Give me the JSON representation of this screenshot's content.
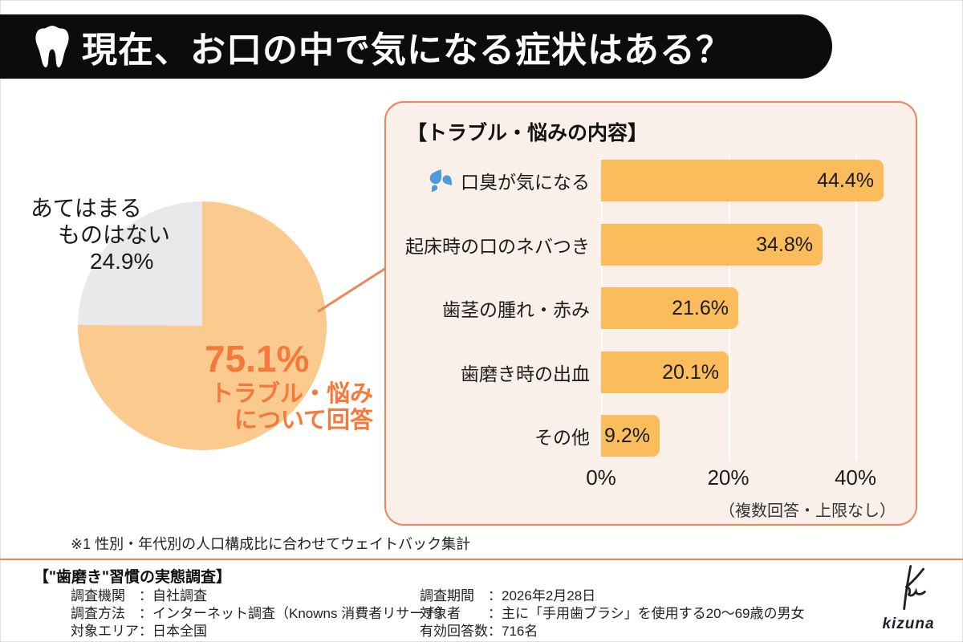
{
  "header": {
    "title": "現在、お口の中で気になる症状はある？"
  },
  "pie": {
    "none_label_lines": [
      "あてはまる",
      "ものはない",
      "24.9%"
    ],
    "answered_value": "75.1%",
    "answered_label_lines": [
      "トラブル・悩み",
      "について回答"
    ]
  },
  "panel": {
    "title": "【トラブル・悩みの内容】",
    "axis_ticks": [
      "0%",
      "20%",
      "40%"
    ],
    "note": "（複数回答・上限なし）"
  },
  "bars": [
    {
      "label": "口臭が気になる",
      "value": 44.4,
      "display": "44.4%",
      "icon": "water-drops-icon"
    },
    {
      "label": "起床時の口のネバつき",
      "value": 34.8,
      "display": "34.8%"
    },
    {
      "label": "歯茎の腫れ・赤み",
      "value": 21.6,
      "display": "21.6%"
    },
    {
      "label": "歯磨き時の出血",
      "value": 20.1,
      "display": "20.1%"
    },
    {
      "label": "その他",
      "value": 9.2,
      "display": "9.2%"
    }
  ],
  "footnote": "※1 性別・年代別の人口構成比に合わせてウェイトバック集計",
  "footer": {
    "title": "【\"歯磨き\"習慣の実態調査】",
    "left_lines": [
      "調査機関　：自社調査",
      "調査方法　：インターネット調査（Knowns 消費者リサーチ）",
      "対象エリア：日本全国"
    ],
    "right_lines": [
      "調査期間　：2026年2月28日",
      "対象者　　：主に「手用歯ブラシ」を使用する20〜69歳の男女",
      "有効回答数：716名"
    ],
    "logo_text": "kizuna"
  },
  "colors": {
    "accent_border": "#F0855A",
    "accent_text": "#F4793B",
    "bar_fill": "#FBBC5C",
    "pie_answered": "#FACA8E",
    "pie_none": "#E9E9EB",
    "panel_bg": "#FAEFE9",
    "header_bg": "#0C0C0C",
    "drop_icon_blue": "#4D9BD9"
  },
  "chart_data": [
    {
      "type": "pie",
      "title": "現在、お口の中で気になる症状はある？",
      "labels": [
        "トラブル・悩みについて回答",
        "あてはまるものはない"
      ],
      "values": [
        75.1,
        24.9
      ],
      "colors": [
        "#FACA8E",
        "#E9E9EB"
      ],
      "start_angle_deg": 0,
      "direction": "clockwise",
      "legend_position": "none"
    },
    {
      "type": "bar",
      "orientation": "horizontal",
      "title": "【トラブル・悩みの内容】",
      "categories": [
        "口臭が気になる",
        "起床時の口のネバつき",
        "歯茎の腫れ・赤み",
        "歯磨き時の出血",
        "その他"
      ],
      "values": [
        44.4,
        34.8,
        21.6,
        20.1,
        9.2
      ],
      "unit": "%",
      "xlim": [
        0,
        46
      ],
      "xticks": [
        0,
        20,
        40
      ],
      "grid": true,
      "value_labels_inside": true,
      "note": "（複数回答・上限なし）"
    }
  ]
}
